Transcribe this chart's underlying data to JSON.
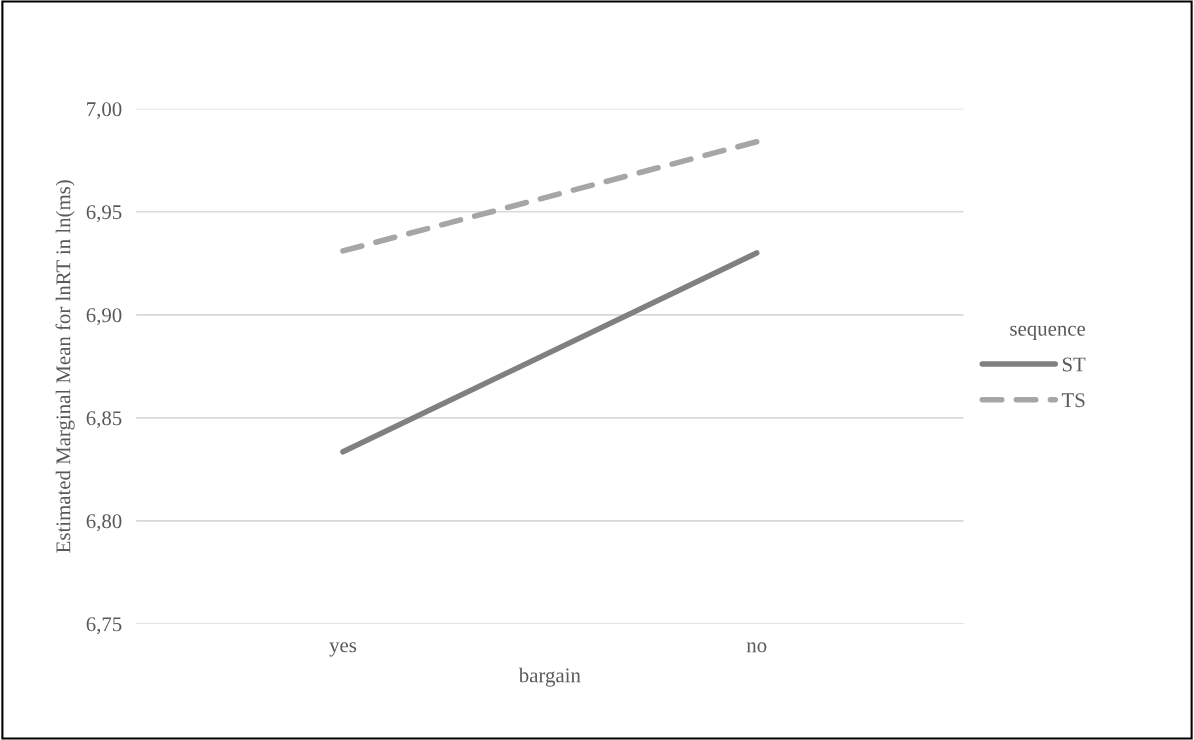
{
  "chart_data": {
    "type": "line",
    "xlabel": "bargain",
    "ylabel": "Estimated Marginal Mean for lnRT in ln(ms)",
    "legend_title": "sequence",
    "categories": [
      "yes",
      "no"
    ],
    "series": [
      {
        "name": "ST",
        "color": "#808080",
        "values": [
          6.8335,
          6.93
        ],
        "line_style": "solid"
      },
      {
        "name": "TS",
        "color": "#a6a6a6",
        "values": [
          6.931,
          6.984
        ],
        "line_style": "dashed"
      }
    ],
    "ylim": [
      6.75,
      7.0
    ],
    "yticks": [
      {
        "value": 6.75,
        "label": "6,75"
      },
      {
        "value": 6.8,
        "label": "6,80"
      },
      {
        "value": 6.85,
        "label": "6,85"
      },
      {
        "value": 6.9,
        "label": "6,90"
      },
      {
        "value": 6.95,
        "label": "6,95"
      },
      {
        "value": 7.0,
        "label": "7,00"
      }
    ],
    "grid": "y",
    "legend": "right",
    "marker": "none"
  }
}
